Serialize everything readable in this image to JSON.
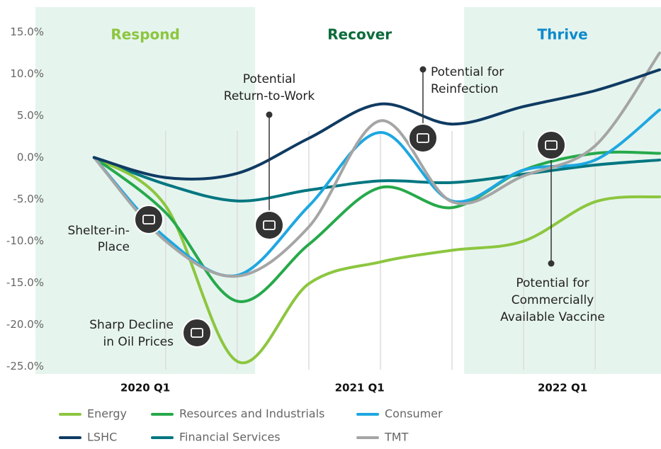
{
  "chart_data": {
    "type": "line",
    "x": [
      0,
      1,
      2,
      3,
      4,
      5,
      6,
      7,
      7.9
    ],
    "xlim": [
      -0.82,
      7.92
    ],
    "ylim": [
      -25.9,
      18
    ],
    "yticks": [
      {
        "value": 15,
        "label": "15.0%"
      },
      {
        "value": 10,
        "label": "10.0%"
      },
      {
        "value": 5,
        "label": "5.0%"
      },
      {
        "value": 0,
        "label": "0.0%"
      },
      {
        "value": -5,
        "label": "-5.0%"
      },
      {
        "value": -10,
        "label": "-10.0%"
      },
      {
        "value": -15,
        "label": "-15.0%"
      },
      {
        "value": -20,
        "label": "-20.0%"
      },
      {
        "value": -25,
        "label": "-25.0%"
      }
    ],
    "regions": [
      {
        "title": "Respond",
        "period": "2020 Q1",
        "color": "#8cc63f",
        "shaded": true,
        "start": -0.82,
        "end": 2.25
      },
      {
        "title": "Recover",
        "period": "2021 Q1",
        "color": "#0b6b3a",
        "shaded": false,
        "start": 2.25,
        "end": 5.17
      },
      {
        "title": "Thrive",
        "period": "2022 Q1",
        "color": "#0d8acb",
        "shaded": true,
        "start": 5.17,
        "end": 7.92
      }
    ],
    "series": [
      {
        "name": "Energy",
        "color": "#8cc63f",
        "values": [
          0,
          -5.8,
          -24.4,
          -15.1,
          -12.5,
          -11.1,
          -10,
          -5.3,
          -4.7
        ]
      },
      {
        "name": "Resources and Industrials",
        "color": "#26a94b",
        "values": [
          0,
          -6.6,
          -17.2,
          -10.4,
          -3.6,
          -6.0,
          -1.5,
          0.5,
          0.5
        ]
      },
      {
        "name": "Consumer",
        "color": "#1ea7e1",
        "values": [
          0,
          -9.6,
          -14.1,
          -5.8,
          3.0,
          -5.2,
          -1.5,
          -0.3,
          5.7
        ]
      },
      {
        "name": "LSHC",
        "color": "#0f3b62",
        "values": [
          0,
          -2.4,
          -1.9,
          2.3,
          6.4,
          4.0,
          6.1,
          8.0,
          10.5
        ]
      },
      {
        "name": "Financial Services",
        "color": "#007680",
        "values": [
          0,
          -3.2,
          -5.2,
          -3.9,
          -2.8,
          -3.0,
          -2.0,
          -0.9,
          -0.3
        ]
      },
      {
        "name": "TMT",
        "color": "#a5a5a5",
        "values": [
          0,
          -10,
          -14.2,
          -8.3,
          4.4,
          -5.3,
          -2.2,
          1.4,
          12.5
        ]
      }
    ],
    "annotations": [
      {
        "lines": [
          "Shelter-in-",
          "Place"
        ]
      },
      {
        "lines": [
          "Sharp Decline",
          "in Oil Prices"
        ]
      },
      {
        "lines": [
          "Potential",
          "Return-to-Work"
        ]
      },
      {
        "lines": [
          "Potential for",
          "Reinfection"
        ]
      },
      {
        "lines": [
          "Potential for",
          "Commercially",
          "Available Vaccine"
        ]
      }
    ]
  }
}
